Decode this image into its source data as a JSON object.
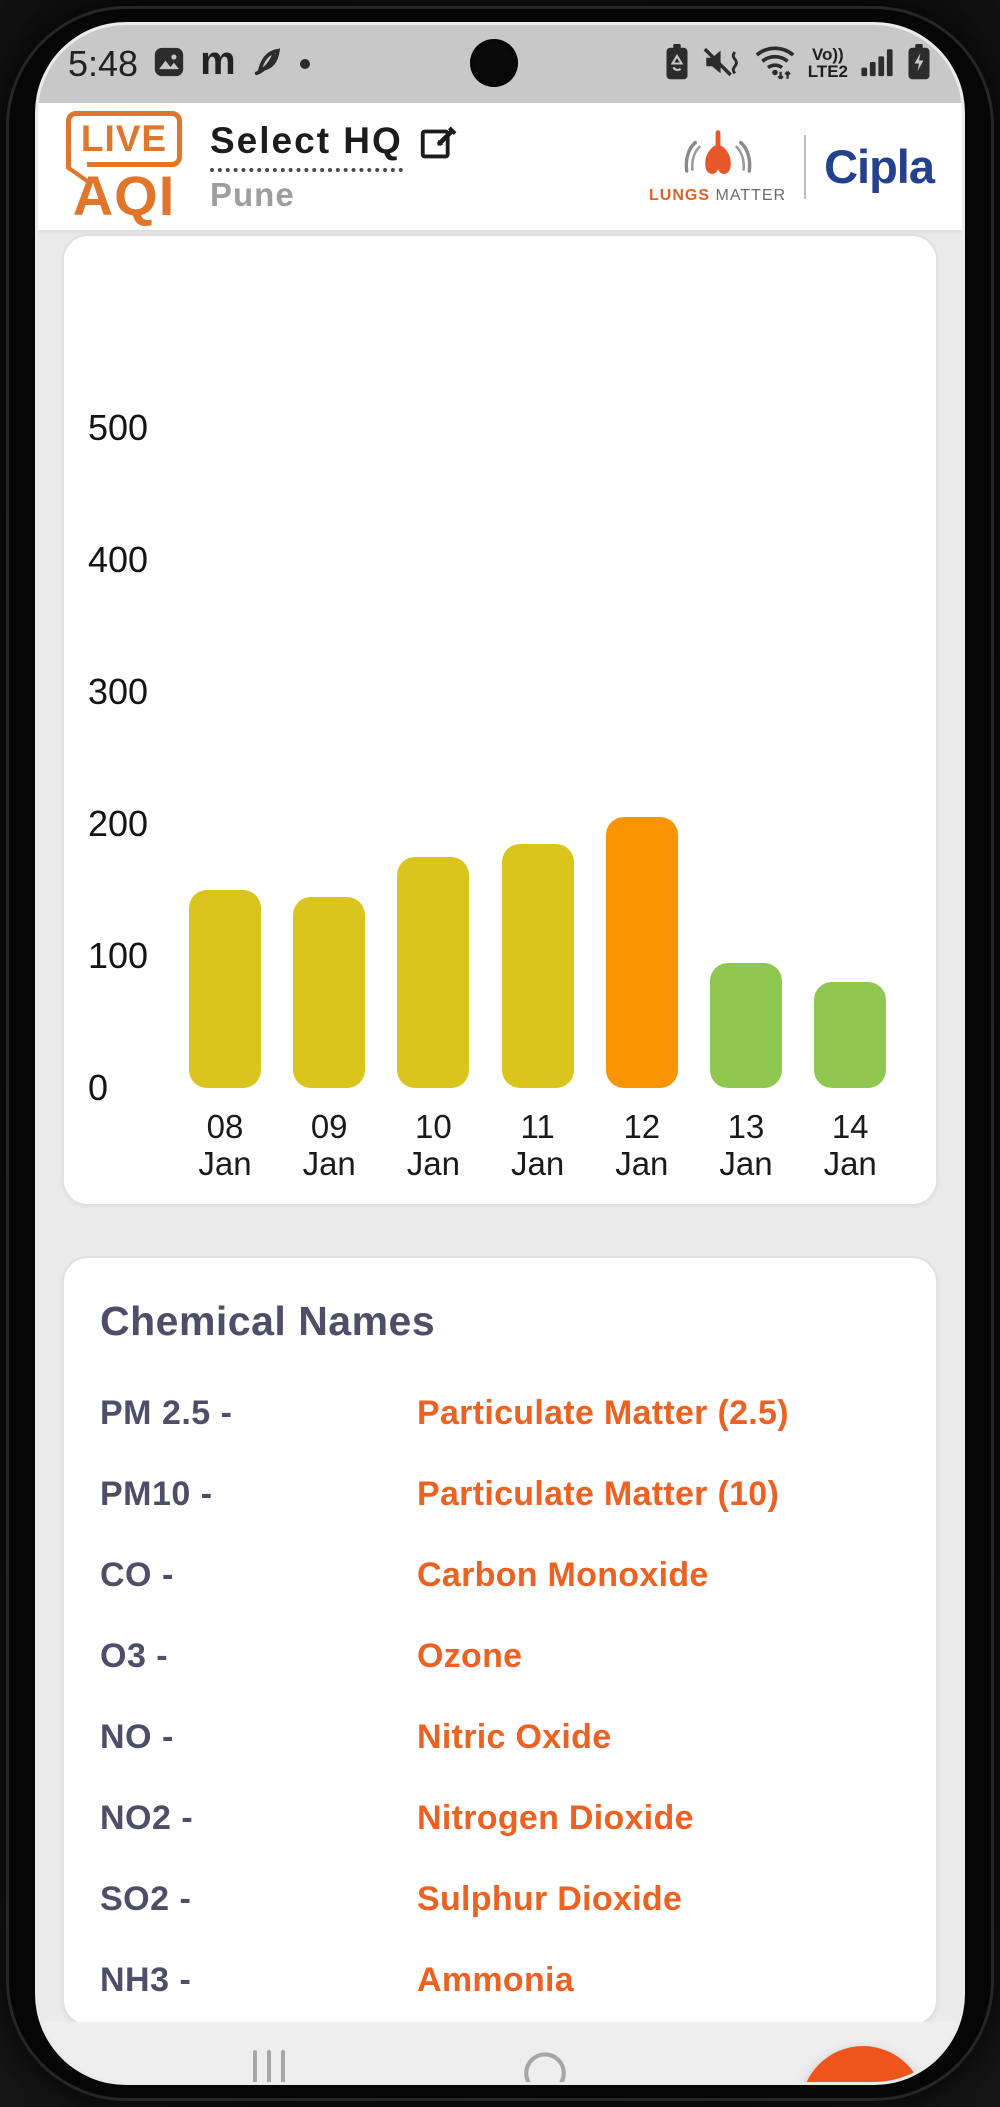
{
  "status_bar": {
    "time": "5:48",
    "left_icons": [
      "image-icon",
      "m-icon",
      "leaf-icon",
      "dot-icon"
    ],
    "right_icons": [
      "battery-saver-icon",
      "mute-vibrate-icon",
      "wifi-icon",
      "volte-badge",
      "signal-icon",
      "battery-charging-icon"
    ],
    "volte_top": "Vo))",
    "volte_bottom": "LTE2"
  },
  "header": {
    "logo_line1": "LIVE",
    "logo_line2": "AQI",
    "title": "Select HQ",
    "subtitle": "Pune",
    "edit_icon": "edit-pencil-icon",
    "partner": {
      "word1": "LUNGS",
      "word2": "MATTER",
      "icon": "lungs-icon"
    },
    "brand": "Cipla"
  },
  "chart_data": {
    "type": "bar",
    "title": "",
    "xlabel": "",
    "ylabel": "",
    "categories": [
      "08 Jan",
      "09 Jan",
      "10 Jan",
      "11 Jan",
      "12 Jan",
      "13 Jan",
      "14 Jan"
    ],
    "values": [
      150,
      145,
      175,
      185,
      205,
      95,
      80
    ],
    "bar_colors": [
      "#D9C51D",
      "#D9C51D",
      "#D9C51D",
      "#D9C51D",
      "#FA9403",
      "#8FC750",
      "#8FC750"
    ],
    "yticks": [
      0,
      100,
      200,
      300,
      400,
      500
    ],
    "ylim": [
      0,
      560
    ],
    "grid": false,
    "legend_position": "none"
  },
  "chemical_card": {
    "title": "Chemical Names",
    "rows": [
      {
        "abbr": "PM 2.5 -",
        "name": "Particulate Matter (2.5)"
      },
      {
        "abbr": "PM10 -",
        "name": "Particulate Matter (10)"
      },
      {
        "abbr": "CO -",
        "name": "Carbon Monoxide"
      },
      {
        "abbr": "O3 -",
        "name": "Ozone"
      },
      {
        "abbr": "NO -",
        "name": "Nitric Oxide"
      },
      {
        "abbr": "NO2 -",
        "name": "Nitrogen Dioxide"
      },
      {
        "abbr": "SO2 -",
        "name": "Sulphur Dioxide"
      },
      {
        "abbr": "NH3 -",
        "name": "Ammonia"
      }
    ]
  },
  "fab": {
    "icon": "share-icon",
    "color": "#EF541C"
  },
  "bottom_nav": {
    "icons": [
      "bar-chart-icon",
      "circle-icon",
      "back-arc-icon"
    ]
  },
  "colors": {
    "accent_orange": "#E0752C",
    "text_orange": "#EB6223",
    "slate": "#4E4E68",
    "cipla_blue": "#24418E",
    "status_bar_bg": "#C8C8C8",
    "content_bg": "#ECEBEB"
  }
}
